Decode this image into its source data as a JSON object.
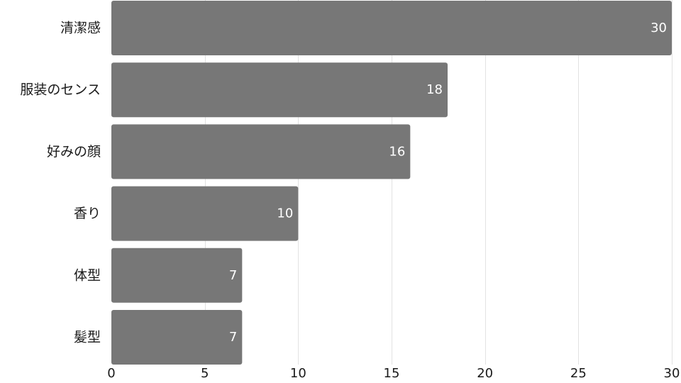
{
  "chart_data": {
    "type": "bar",
    "orientation": "horizontal",
    "categories": [
      "清潔感",
      "服装のセンス",
      "好みの顔",
      "香り",
      "体型",
      "髪型"
    ],
    "values": [
      30,
      18,
      16,
      10,
      7,
      7
    ],
    "xlim": [
      0,
      30
    ],
    "x_ticks": [
      0,
      5,
      10,
      15,
      20,
      25,
      30
    ],
    "grid": true,
    "data_labels": true,
    "title": "",
    "xlabel": "",
    "ylabel": "",
    "colors": {
      "bar": "#777777",
      "value_label": "#ffffff",
      "grid": "#e2e2e2",
      "text": "#1a1a1a"
    }
  }
}
